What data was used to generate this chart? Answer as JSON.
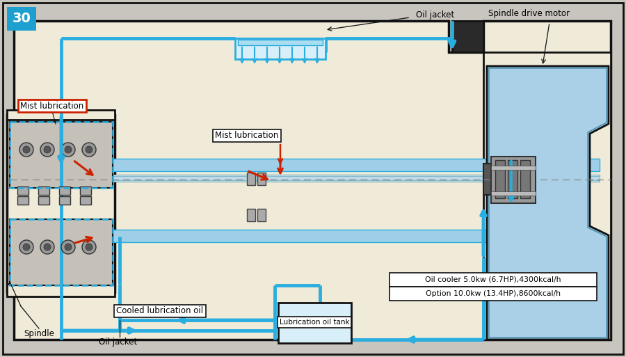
{
  "bg_color": "#c8c4be",
  "cream": "#f0ead8",
  "blue": "#2aaee0",
  "dark": "#111111",
  "red": "#cc2200",
  "motor_blue": "#8bbfd8",
  "motor_dark": "#5a8aaa",
  "gray_mid": "#aaaaaa",
  "gray_dark": "#666666",
  "rail_blue": "#9fcfe8",
  "badge_blue": "#1da0d0",
  "labels": {
    "oil_jacket_top": "Oil jacket",
    "spindle_drive_motor": "Spindle drive motor",
    "mist_lub_left": "Mist lubrication",
    "mist_lub_center": "Mist lubrication",
    "cooled_lub": "Cooled lubrication oil",
    "spindle": "Spindle",
    "oil_jacket_bottom": "Oil jacket",
    "lub_oil_tank": "Lubrication oil tank",
    "oil_cooler1": "Oil cooler 5.0kw (6.7HP),4300kcal/h",
    "oil_cooler2": "Option 10.0kw (13.4HP),8600kcal/h"
  }
}
